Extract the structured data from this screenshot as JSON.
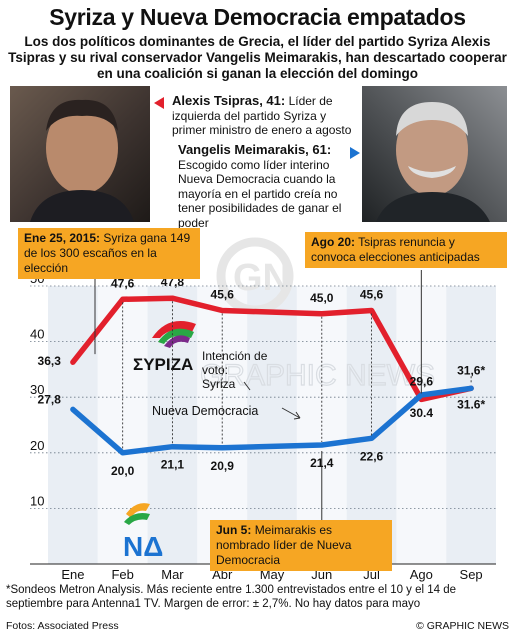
{
  "title": "Syriza y Nueva Democracia empatados",
  "subtitle": "Los dos políticos dominantes de Grecia, el líder del partido Syriza Alexis Tsipras y su rival conservador Vangelis Meimarakis, han descartado cooperar en una coalición si ganan la elección del domingo",
  "bios": {
    "tsipras_name": "Alexis Tsipras, 41:",
    "tsipras_text": "Líder de izquierda del partido Syriza y primer ministro de enero a agosto",
    "meimarakis_name": "Vangelis Meimarakis, 61:",
    "meimarakis_text": "Escogido como líder interino Nueva Democracia cuando la mayoría en el partido creía no tener posibilidades de ganar el poder"
  },
  "callouts": {
    "jan_date": "Ene 25, 2015:",
    "jan_text": "Syriza gana 149 de los 300 escaños en la elección",
    "aug_date": "Ago 20:",
    "aug_text": "Tsipras renuncia y convoca elecciones anticipadas",
    "jun_date": "Jun 5:",
    "jun_text": "Meimarakis es nombrado líder de Nueva Democracia"
  },
  "labels": {
    "syriza_series": "Intención de voto: Syriza",
    "nd_series": "Nueva Democracia",
    "syriza_logo": "ΣΥΡΙΖΑ",
    "nd_logo": "ΝΔ",
    "watermark": "GRAPHIC NEWS",
    "unit": "%"
  },
  "chart_data": {
    "type": "line",
    "categories": [
      "Ene",
      "Feb",
      "Mar",
      "Abr",
      "May",
      "Jun",
      "Jul",
      "Ago",
      "Sep"
    ],
    "ylim": [
      0,
      50
    ],
    "yticks": [
      10,
      20,
      30,
      40,
      50
    ],
    "ylabel": "%",
    "series": [
      {
        "name": "Syriza",
        "color": "#e2202c",
        "points": [
          {
            "x": 0,
            "y": 36.3,
            "label": "36,3"
          },
          {
            "x": 1,
            "y": 47.6,
            "label": "47,6"
          },
          {
            "x": 2,
            "y": 47.8,
            "label": "47,8"
          },
          {
            "x": 3,
            "y": 45.6,
            "label": "45,6"
          },
          {
            "x": 5,
            "y": 45.0,
            "label": "45,0"
          },
          {
            "x": 6,
            "y": 45.6,
            "label": "45,6"
          },
          {
            "x": 7,
            "y": 29.6,
            "label": "29,6"
          },
          {
            "x": 8,
            "y": 31.6,
            "label": "31,6*"
          }
        ]
      },
      {
        "name": "Nueva Democracia",
        "color": "#1c73d1",
        "points": [
          {
            "x": 0,
            "y": 27.8,
            "label": "27,8"
          },
          {
            "x": 1,
            "y": 20.0,
            "label": "20,0"
          },
          {
            "x": 2,
            "y": 21.1,
            "label": "21,1"
          },
          {
            "x": 3,
            "y": 20.9,
            "label": "20,9"
          },
          {
            "x": 5,
            "y": 21.4,
            "label": "21,4"
          },
          {
            "x": 6,
            "y": 22.6,
            "label": "22,6"
          },
          {
            "x": 7,
            "y": 30.4,
            "label": "30.4"
          },
          {
            "x": 8,
            "y": 31.6,
            "label": "31.6*"
          }
        ]
      }
    ]
  },
  "footer": {
    "note": "*Sondeos Metron Analysis. Más reciente entre 1.300 entrevistados entre el 10 y el 14 de septiembre para Antenna1 TV. Margen de error: ± 2,7%. No hay datos para mayo",
    "photos": "Fotos: Associated Press",
    "copyright": "© GRAPHIC NEWS"
  }
}
